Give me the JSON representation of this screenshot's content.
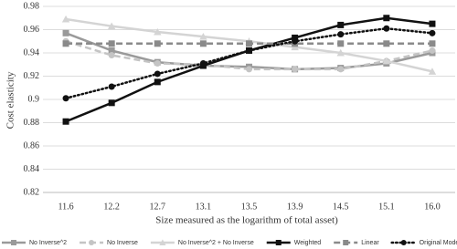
{
  "chart_data": {
    "type": "line",
    "x_label": "Size measured as the logarithm of total asset)",
    "y_label": "Cost elasticity",
    "categories": [
      "11.6",
      "12.2",
      "12.7",
      "13.1",
      "13.5",
      "13.9",
      "14.5",
      "15.1",
      "16.0"
    ],
    "ylim": [
      0.82,
      0.98
    ],
    "yticks": [
      0.82,
      0.84,
      0.86,
      0.88,
      0.9,
      0.92,
      0.94,
      0.96,
      0.98
    ],
    "grid": true,
    "legend": "bottom",
    "series": [
      {
        "name": "No Inverse^2",
        "color": "#9a9a9a",
        "dash": "solid",
        "marker": "square",
        "values": [
          0.957,
          0.942,
          0.932,
          0.929,
          0.928,
          0.926,
          0.927,
          0.931,
          0.94
        ]
      },
      {
        "name": "No Inverse",
        "color": "#c4c4c4",
        "dash": "dashed",
        "marker": "circle",
        "values": [
          0.95,
          0.938,
          0.931,
          0.93,
          0.926,
          0.926,
          0.926,
          0.933,
          0.942
        ]
      },
      {
        "name": "No Inverse^2 + No Inverse",
        "color": "#d4d4d4",
        "dash": "solid",
        "marker": "triangle",
        "values": [
          0.969,
          0.963,
          0.958,
          0.954,
          0.95,
          0.945,
          0.94,
          0.933,
          0.924
        ]
      },
      {
        "name": "Weighted",
        "color": "#111111",
        "dash": "solid",
        "marker": "square",
        "values": [
          0.881,
          0.897,
          0.915,
          0.929,
          0.942,
          0.953,
          0.964,
          0.97,
          0.965
        ]
      },
      {
        "name": "Linear",
        "color": "#8a8a8a",
        "dash": "dashed",
        "marker": "square",
        "values": [
          0.948,
          0.948,
          0.948,
          0.948,
          0.948,
          0.948,
          0.948,
          0.948,
          0.948
        ]
      },
      {
        "name": "Original Model",
        "color": "#111111",
        "dash": "dotted",
        "marker": "circle",
        "values": [
          0.901,
          0.911,
          0.922,
          0.931,
          0.942,
          0.95,
          0.956,
          0.961,
          0.957
        ]
      }
    ]
  }
}
